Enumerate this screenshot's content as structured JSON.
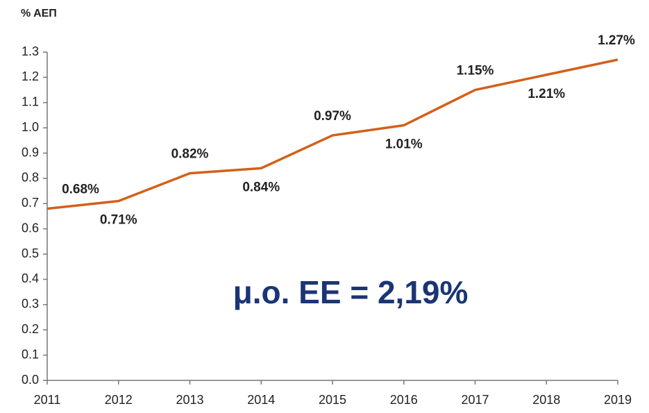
{
  "chart_data": {
    "type": "line",
    "y_axis_label": "% ΑΕΠ",
    "annotation": "μ.ο. ΕΕ = 2,19%",
    "categories": [
      "2011",
      "2012",
      "2013",
      "2014",
      "2015",
      "2016",
      "2017",
      "2018",
      "2019"
    ],
    "values": [
      0.68,
      0.71,
      0.82,
      0.84,
      0.97,
      1.01,
      1.15,
      1.21,
      1.27
    ],
    "value_labels": [
      "0.68%",
      "0.71%",
      "0.82%",
      "0.84%",
      "0.97%",
      "1.01%",
      "1.15%",
      "1.21%",
      "1.27%"
    ],
    "color": "#d2601a",
    "ylim": [
      0,
      1.3
    ],
    "yticks": [
      {
        "value": 0,
        "label": "0.0"
      },
      0.1,
      0.2,
      0.3,
      0.4,
      0.5,
      0.6,
      0.7,
      0.8,
      0.9,
      {
        "value": 1,
        "label": "1.0"
      },
      1.1,
      1.2,
      1.3
    ],
    "grid": false
  }
}
